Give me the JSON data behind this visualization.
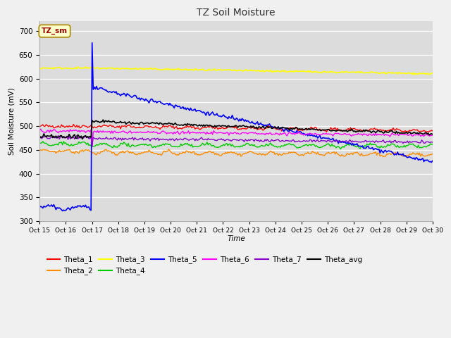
{
  "title": "TZ Soil Moisture",
  "xlabel": "Time",
  "ylabel": "Soil Moisture (mV)",
  "ylim": [
    300,
    720
  ],
  "yticks": [
    300,
    350,
    400,
    450,
    500,
    550,
    600,
    650,
    700
  ],
  "bg_color": "#dcdcdc",
  "fig_color": "#f0f0f0",
  "legend_box_label": "TZ_sm",
  "legend_box_color": "#ffffcc",
  "legend_box_border": "#aa8800",
  "legend_box_text": "#990000",
  "xtick_labels": [
    "Oct 15",
    "Oct 16",
    "Oct 17",
    "Oct 18",
    "Oct 19",
    "Oct 20",
    "Oct 21",
    "Oct 22",
    "Oct 23",
    "Oct 24",
    "Oct 25",
    "Oct 26",
    "Oct 27",
    "Oct 28",
    "Oct 29",
    "Oct 30"
  ],
  "series": {
    "Theta_1": {
      "color": "#ff0000",
      "lw": 1.0
    },
    "Theta_2": {
      "color": "#ff8c00",
      "lw": 1.0
    },
    "Theta_3": {
      "color": "#ffff00",
      "lw": 1.2
    },
    "Theta_4": {
      "color": "#00cc00",
      "lw": 1.0
    },
    "Theta_5": {
      "color": "#0000ff",
      "lw": 1.2
    },
    "Theta_6": {
      "color": "#ff00ff",
      "lw": 1.0
    },
    "Theta_7": {
      "color": "#8800cc",
      "lw": 1.0
    },
    "Theta_avg": {
      "color": "#000000",
      "lw": 1.2
    }
  }
}
